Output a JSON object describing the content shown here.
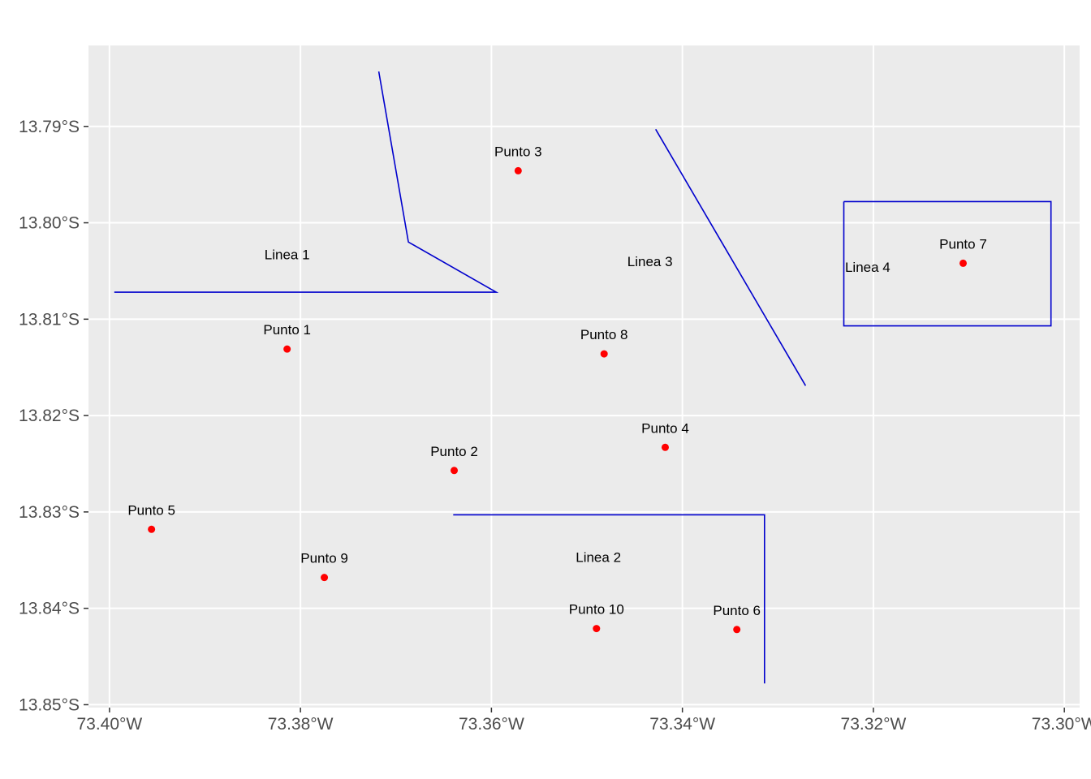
{
  "chart_data": {
    "type": "scatter",
    "title": "",
    "xlabel": "",
    "ylabel": "",
    "xlim": [
      -73.4022,
      -73.2984
    ],
    "ylim": [
      -13.8503,
      -13.7816
    ],
    "grid": true,
    "colors": {
      "panel": "#ebebeb",
      "grid": "#ffffff",
      "points": "#ff0000",
      "lines": "#0000cd",
      "tick_text": "#4d4d4d",
      "label_text": "#000000"
    },
    "x_ticks": [
      {
        "value": -73.4,
        "label": "73.40°W"
      },
      {
        "value": -73.38,
        "label": "73.38°W"
      },
      {
        "value": -73.36,
        "label": "73.36°W"
      },
      {
        "value": -73.34,
        "label": "73.34°W"
      },
      {
        "value": -73.32,
        "label": "73.32°W"
      },
      {
        "value": -73.3,
        "label": "73.30°W"
      }
    ],
    "y_ticks": [
      {
        "value": -13.79,
        "label": "13.79°S"
      },
      {
        "value": -13.8,
        "label": "13.80°S"
      },
      {
        "value": -13.81,
        "label": "13.81°S"
      },
      {
        "value": -13.82,
        "label": "13.82°S"
      },
      {
        "value": -13.83,
        "label": "13.83°S"
      },
      {
        "value": -13.84,
        "label": "13.84°S"
      },
      {
        "value": -13.85,
        "label": "13.85°S"
      }
    ],
    "points": [
      {
        "label": "Punto 1",
        "x": -73.3814,
        "y": -13.8131
      },
      {
        "label": "Punto 2",
        "x": -73.3639,
        "y": -13.8257
      },
      {
        "label": "Punto 3",
        "x": -73.3572,
        "y": -13.7946
      },
      {
        "label": "Punto 4",
        "x": -73.3418,
        "y": -13.8233
      },
      {
        "label": "Punto 5",
        "x": -73.3956,
        "y": -13.8318
      },
      {
        "label": "Punto 6",
        "x": -73.3343,
        "y": -13.8422
      },
      {
        "label": "Punto 7",
        "x": -73.3106,
        "y": -13.8042
      },
      {
        "label": "Punto 8",
        "x": -73.3482,
        "y": -13.8136
      },
      {
        "label": "Punto 9",
        "x": -73.3775,
        "y": -13.8368
      },
      {
        "label": "Punto 10",
        "x": -73.349,
        "y": -13.8421
      }
    ],
    "lines": [
      {
        "label": "Linea 1",
        "label_pos": [
          -73.3814,
          -13.8033
        ],
        "coords": [
          [
            -73.3718,
            -13.7843
          ],
          [
            -73.3687,
            -13.802
          ],
          [
            -73.3595,
            -13.8072
          ],
          [
            -73.3995,
            -13.8072
          ]
        ]
      },
      {
        "label": "Linea 2",
        "label_pos": [
          -73.3488,
          -13.8347
        ],
        "coords": [
          [
            -73.364,
            -13.8303
          ],
          [
            -73.3314,
            -13.8303
          ],
          [
            -73.3314,
            -13.8478
          ]
        ]
      },
      {
        "label": "Linea 3",
        "label_pos": [
          -73.3434,
          -13.804
        ],
        "coords": [
          [
            -73.3428,
            -13.7903
          ],
          [
            -73.3271,
            -13.8169
          ]
        ]
      },
      {
        "label": "Linea 4",
        "label_pos": [
          -73.3206,
          -13.8046
        ],
        "coords": [
          [
            -73.3231,
            -13.7978
          ],
          [
            -73.3014,
            -13.7978
          ],
          [
            -73.3014,
            -13.8107
          ],
          [
            -73.3231,
            -13.8107
          ],
          [
            -73.3231,
            -13.7978
          ]
        ]
      }
    ]
  }
}
